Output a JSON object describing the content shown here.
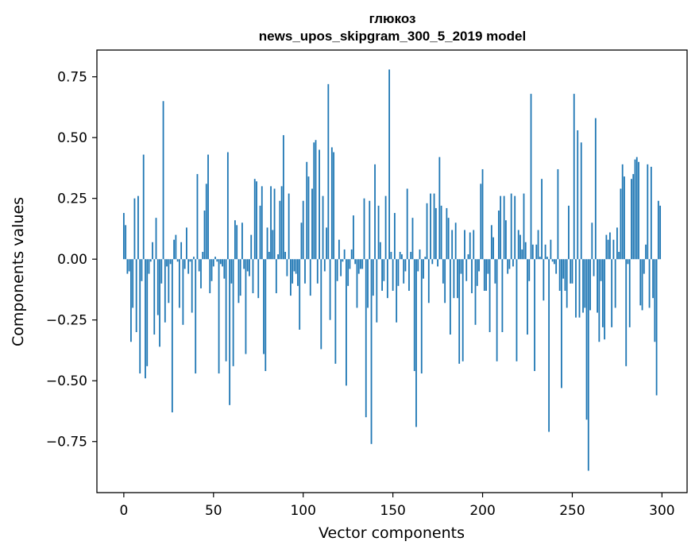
{
  "chart_data": {
    "type": "bar",
    "title": "глюкоз",
    "subtitle": "news_upos_skipgram_300_5_2019 model",
    "xlabel": "Vector components",
    "ylabel": "Components values",
    "xlim": [
      -15,
      314
    ],
    "ylim": [
      -0.96,
      0.86
    ],
    "xticks": [
      0,
      50,
      100,
      150,
      200,
      250,
      300
    ],
    "yticks": [
      -0.75,
      -0.5,
      -0.25,
      0.0,
      0.25,
      0.5,
      0.75
    ],
    "ytick_labels": [
      "−0.75",
      "−0.50",
      "−0.25",
      "0.00",
      "0.25",
      "0.50",
      "0.75"
    ],
    "bar_color": "#1f77b4",
    "grid": false,
    "x": "indices 0..299",
    "values": [
      0.19,
      0.14,
      -0.06,
      -0.05,
      -0.34,
      -0.2,
      0.25,
      -0.3,
      0.26,
      -0.47,
      -0.09,
      0.43,
      -0.49,
      -0.44,
      -0.06,
      -0.01,
      0.07,
      -0.31,
      0.17,
      -0.23,
      -0.36,
      -0.1,
      0.65,
      -0.26,
      -0.03,
      -0.18,
      -0.02,
      -0.63,
      0.08,
      0.1,
      -0.01,
      -0.2,
      0.07,
      -0.27,
      -0.04,
      0.13,
      -0.06,
      -0.01,
      -0.22,
      0.01,
      -0.47,
      0.35,
      -0.05,
      -0.12,
      0.03,
      0.2,
      0.31,
      0.43,
      -0.14,
      -0.09,
      -0.03,
      0.01,
      -0.01,
      -0.47,
      -0.02,
      -0.03,
      -0.08,
      -0.42,
      0.44,
      -0.6,
      -0.1,
      -0.44,
      0.16,
      0.14,
      -0.18,
      -0.15,
      0.15,
      -0.04,
      -0.39,
      -0.05,
      -0.07,
      0.1,
      -0.14,
      0.33,
      0.32,
      -0.16,
      0.22,
      0.3,
      -0.39,
      -0.46,
      0.13,
      0.03,
      0.3,
      0.12,
      0.29,
      -0.14,
      0.02,
      0.24,
      0.3,
      0.51,
      0.03,
      -0.07,
      0.27,
      -0.15,
      -0.1,
      -0.05,
      -0.06,
      -0.11,
      -0.29,
      0.15,
      0.24,
      -0.1,
      0.4,
      0.34,
      -0.15,
      0.29,
      0.48,
      0.49,
      -0.1,
      0.45,
      -0.37,
      0.26,
      -0.05,
      0.13,
      0.72,
      -0.25,
      0.46,
      0.44,
      -0.43,
      -0.09,
      0.08,
      -0.07,
      -0.01,
      0.04,
      -0.52,
      -0.11,
      -0.04,
      0.04,
      0.18,
      -0.02,
      -0.2,
      -0.06,
      -0.04,
      -0.04,
      0.25,
      -0.65,
      -0.2,
      0.24,
      -0.76,
      -0.15,
      0.39,
      -0.26,
      0.22,
      0.07,
      -0.13,
      -0.09,
      0.26,
      -0.16,
      0.78,
      0.03,
      -0.13,
      0.19,
      -0.26,
      -0.11,
      0.03,
      0.02,
      -0.1,
      -0.05,
      0.29,
      -0.13,
      0.03,
      0.17,
      -0.46,
      -0.69,
      -0.05,
      0.04,
      -0.47,
      -0.08,
      0.01,
      0.23,
      -0.18,
      0.27,
      -0.02,
      0.27,
      0.21,
      -0.03,
      0.42,
      0.22,
      -0.1,
      -0.18,
      0.21,
      0.17,
      -0.31,
      0.12,
      -0.16,
      0.15,
      -0.16,
      -0.43,
      -0.06,
      -0.42,
      0.12,
      -0.09,
      0.02,
      0.11,
      -0.14,
      0.12,
      -0.27,
      -0.11,
      -0.05,
      0.31,
      0.37,
      -0.13,
      -0.13,
      -0.06,
      -0.3,
      0.14,
      0.09,
      -0.1,
      -0.42,
      0.2,
      0.26,
      -0.3,
      0.26,
      0.16,
      -0.06,
      -0.04,
      0.27,
      -0.03,
      0.26,
      -0.42,
      0.12,
      0.1,
      0.04,
      0.27,
      0.07,
      -0.31,
      -0.09,
      0.68,
      0.06,
      -0.46,
      0.06,
      0.12,
      0.01,
      0.33,
      -0.17,
      0.06,
      0.01,
      -0.71,
      0.08,
      -0.01,
      -0.02,
      -0.06,
      0.37,
      -0.13,
      -0.53,
      -0.08,
      -0.13,
      -0.2,
      0.22,
      -0.1,
      -0.1,
      0.68,
      -0.24,
      0.53,
      -0.24,
      0.48,
      -0.22,
      -0.2,
      -0.66,
      -0.87,
      -0.21,
      0.15,
      -0.07,
      0.58,
      -0.22,
      -0.34,
      -0.09,
      -0.28,
      -0.33,
      0.1,
      0.08,
      0.11,
      -0.28,
      0.08,
      -0.2,
      0.13,
      0.03,
      0.29,
      0.39,
      0.34,
      -0.44,
      -0.02,
      -0.28,
      0.33,
      0.35,
      0.41,
      0.42,
      0.4,
      -0.19,
      -0.21,
      -0.06,
      0.06,
      0.39,
      -0.2,
      0.38,
      -0.16,
      -0.34,
      -0.56,
      0.24,
      0.22
    ]
  }
}
